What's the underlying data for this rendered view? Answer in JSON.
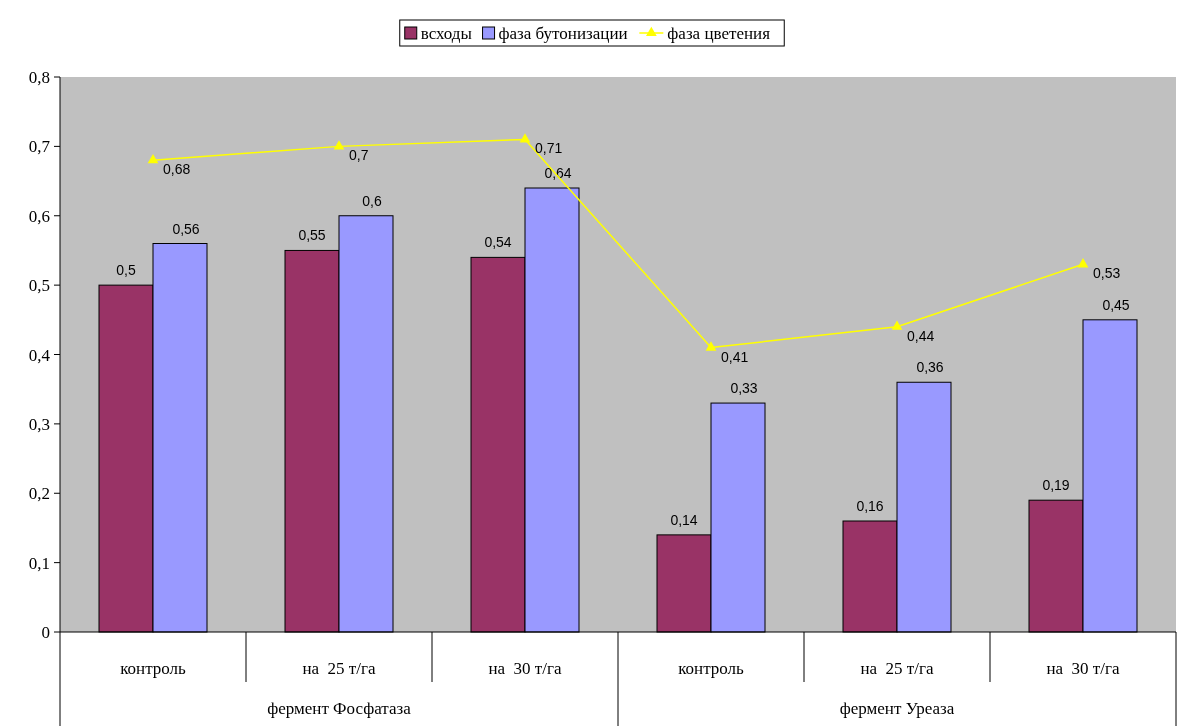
{
  "chart_data": {
    "type": "bar",
    "categories": [
      "контроль",
      "на  25 т/га",
      "на  30 т/га",
      "контроль",
      "на  25 т/га",
      "на  30 т/га"
    ],
    "annotations": [
      "фермент Фосфатаза",
      "фермент Уреаза"
    ],
    "series": [
      {
        "name": "всходы",
        "color": "#993366",
        "values": [
          0.5,
          0.55,
          0.54,
          0.14,
          0.16,
          0.19
        ],
        "value_labels": [
          "0,5",
          "0,55",
          "0,54",
          "0,14",
          "0,16",
          "0,19"
        ]
      },
      {
        "name": "фаза бутонизации",
        "color": "#9999ff",
        "values": [
          0.56,
          0.6,
          0.64,
          0.33,
          0.36,
          0.45
        ],
        "value_labels": [
          "0,56",
          "0,6",
          "0,64",
          "0,33",
          "0,36",
          "0,45"
        ]
      },
      {
        "name": "фаза цветения",
        "type": "line",
        "color": "#ffff00",
        "marker": "triangle",
        "values": [
          0.68,
          0.7,
          0.71,
          0.41,
          0.44,
          0.53
        ],
        "value_labels": [
          "0,68",
          "0,7",
          "0,71",
          "0,41",
          "0,44",
          "0,53"
        ]
      }
    ],
    "ylim": [
      0,
      0.8
    ],
    "yticks": [
      0,
      {
        "value": 0.1,
        "label": "0,1"
      },
      {
        "value": 0.2,
        "label": "0,2"
      },
      {
        "value": 0.3,
        "label": "0,3"
      },
      {
        "value": 0.4,
        "label": "0,4"
      },
      {
        "value": 0.5,
        "label": "0,5"
      },
      {
        "value": 0.6,
        "label": "0,6"
      },
      {
        "value": 0.7,
        "label": "0,7"
      },
      {
        "value": 0.8,
        "label": "0,8"
      }
    ],
    "grid": false,
    "legend": "top"
  }
}
